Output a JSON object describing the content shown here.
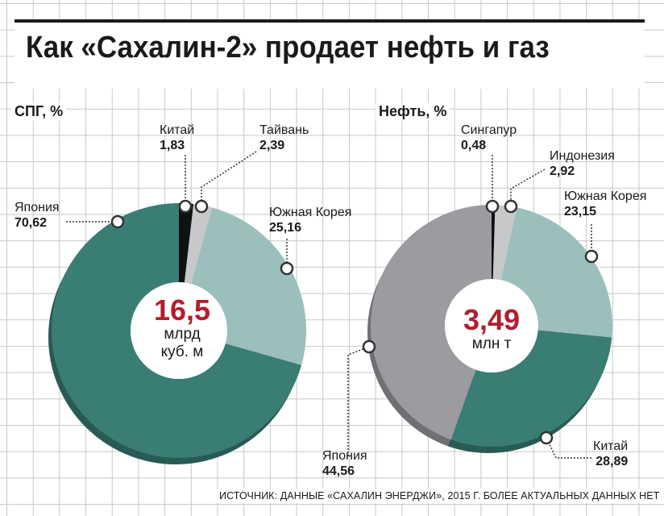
{
  "title": "Как «Сахалин-2» продает нефть и газ",
  "source": "ИСТОЧНИК: ДАННЫЕ «САХАЛИН ЭНЕРДЖИ», 2015 Г. БОЛЕЕ АКТУАЛЬНЫХ ДАННЫХ НЕТ",
  "colors": {
    "teal": "#3a7d74",
    "light_teal": "#9bbfbc",
    "gray": "#9a9ca0",
    "light_gray": "#c6c8ca",
    "black": "#111111",
    "accent_red": "#b01e2e"
  },
  "chart_data": [
    {
      "type": "pie",
      "title": "СПГ, %",
      "center_value": "16,5",
      "center_unit": [
        "млрд",
        "куб. м"
      ],
      "slices": [
        {
          "name": "Китай",
          "value": 1.83,
          "label": "1,83",
          "color": "#111111"
        },
        {
          "name": "Тайвань",
          "value": 2.39,
          "label": "2,39",
          "color": "#c6c8ca"
        },
        {
          "name": "Южная Корея",
          "value": 25.16,
          "label": "25,16",
          "color": "#9bbfbc"
        },
        {
          "name": "Япония",
          "value": 70.62,
          "label": "70,62",
          "color": "#3a7d74"
        }
      ]
    },
    {
      "type": "pie",
      "title": "Нефть, %",
      "center_value": "3,49",
      "center_unit": [
        "млн т"
      ],
      "slices": [
        {
          "name": "Сингапур",
          "value": 0.48,
          "label": "0,48",
          "color": "#111111"
        },
        {
          "name": "Индонезия",
          "value": 2.92,
          "label": "2,92",
          "color": "#c6c8ca"
        },
        {
          "name": "Южная Корея",
          "value": 23.15,
          "label": "23,15",
          "color": "#9bbfbc"
        },
        {
          "name": "Китай",
          "value": 28.89,
          "label": "28,89",
          "color": "#3a7d74"
        },
        {
          "name": "Япония",
          "value": 44.56,
          "label": "44,56",
          "color": "#9a9ca0"
        }
      ]
    }
  ]
}
